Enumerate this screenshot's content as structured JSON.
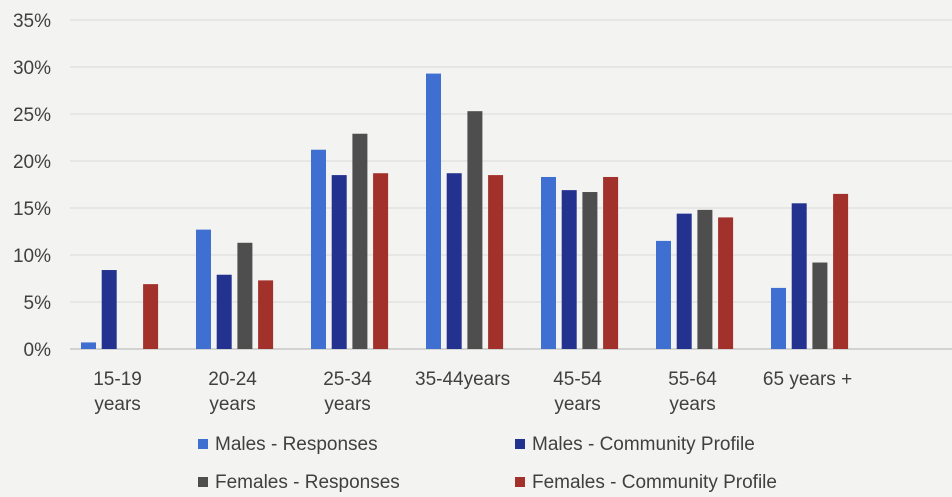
{
  "chart_data": {
    "type": "bar",
    "categories": [
      [
        "15-19",
        "years"
      ],
      [
        "20-24",
        "years"
      ],
      [
        "25-34",
        "years"
      ],
      [
        "35-44years"
      ],
      [
        "45-54",
        "years"
      ],
      [
        "55-64",
        "years"
      ],
      [
        "65 years +"
      ]
    ],
    "series": [
      {
        "name": "Males - Responses",
        "color": "#3f6fd1",
        "values": [
          0.7,
          12.7,
          21.2,
          29.3,
          18.3,
          11.5,
          6.5
        ]
      },
      {
        "name": "Males - Community Profile",
        "color": "#23318f",
        "values": [
          8.4,
          7.9,
          18.5,
          18.7,
          16.9,
          14.4,
          15.5
        ]
      },
      {
        "name": "Females - Responses",
        "color": "#4e4e4e",
        "values": [
          0,
          11.3,
          22.9,
          25.3,
          16.7,
          14.8,
          9.2
        ]
      },
      {
        "name": "Females - Community Profile",
        "color": "#a2302b",
        "values": [
          6.9,
          7.3,
          18.7,
          18.5,
          18.3,
          14.0,
          16.5
        ]
      }
    ],
    "ylim": [
      0,
      35
    ],
    "yticks": [
      0,
      5,
      10,
      15,
      20,
      25,
      30,
      35
    ],
    "ytick_suffix": "%",
    "grid": true,
    "legend_position": "bottom"
  }
}
